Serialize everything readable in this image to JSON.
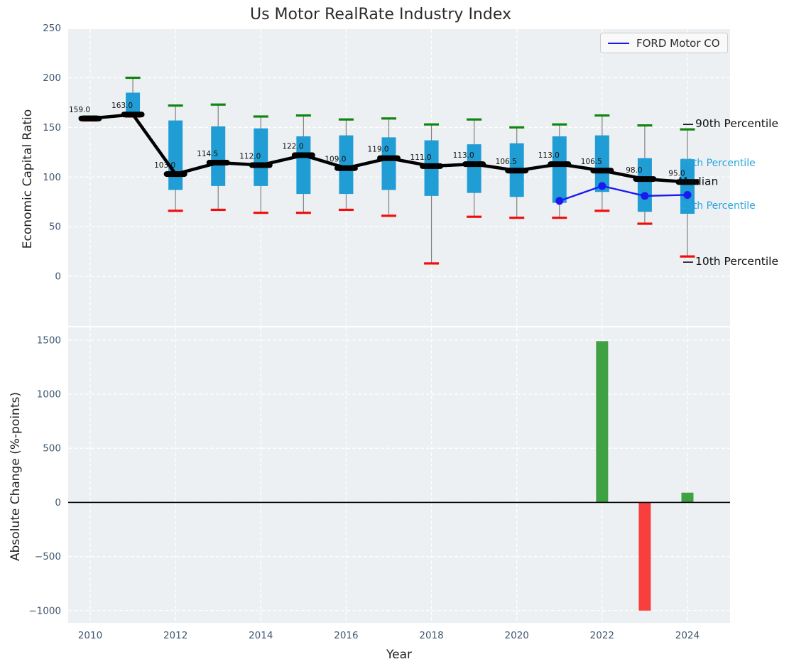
{
  "title": "Us Motor RealRate Industry Index",
  "legend": {
    "label": "FORD Motor CO"
  },
  "colors": {
    "plot_bg": "#edf0f2",
    "grid": "#ffffff",
    "box_fill": "#1f9dd4",
    "whisker": "#808080",
    "p90_cap": "#118511",
    "p10_cap": "#f20d0d",
    "median": "#000000",
    "median_label": "#111111",
    "ford_line": "#1a1af0",
    "percentile_label_blue": "#2aa5dc",
    "percentile_label_dark": "#111111",
    "bar_positive": "#3fa044",
    "bar_negative": "#f93e3e",
    "tick_label": "#3f5870",
    "zero_line": "#000000"
  },
  "chart_data": [
    {
      "type": "boxplot-line",
      "title": "Us Motor RealRate Industry Index",
      "ylabel": "Economic Capital Ratio",
      "ylim": [
        -50,
        249
      ],
      "yticks": [
        0,
        50,
        100,
        150,
        200,
        250
      ],
      "grid_years": [
        2010,
        2012,
        2014,
        2016,
        2018,
        2020,
        2022,
        2024
      ],
      "years": [
        2010,
        2011,
        2012,
        2013,
        2014,
        2015,
        2016,
        2017,
        2018,
        2019,
        2020,
        2021,
        2022,
        2023,
        2024
      ],
      "series": [
        {
          "name": "90th Percentile",
          "values": [
            161,
            200,
            172,
            173,
            161,
            162,
            158,
            159,
            153,
            158,
            150,
            153,
            162,
            152,
            148
          ]
        },
        {
          "name": "75th Percentile",
          "values": [
            160,
            185,
            157,
            151,
            149,
            141,
            142,
            140,
            137,
            133,
            134,
            141,
            142,
            119,
            118
          ]
        },
        {
          "name": "Median",
          "values": [
            159,
            163,
            103,
            114.5,
            112,
            122,
            109,
            119,
            111,
            113,
            106.5,
            113,
            106.5,
            98,
            95
          ]
        },
        {
          "name": "25th Percentile",
          "values": [
            158,
            163,
            87,
            91,
            91,
            83,
            83,
            87,
            81,
            84,
            80,
            74,
            85,
            65,
            63
          ]
        },
        {
          "name": "10th Percentile",
          "values": [
            157,
            161,
            66,
            67,
            64,
            64,
            67,
            61,
            13,
            60,
            59,
            59,
            66,
            53,
            20
          ]
        }
      ],
      "median_labels": [
        "159.0",
        "163.0",
        "103.0",
        "114.5",
        "112.0",
        "122.0",
        "109.0",
        "119.0",
        "111.0",
        "113.0",
        "106.5",
        "113.0",
        "106.5",
        "98.0",
        "95.0"
      ],
      "company_line": {
        "name": "FORD Motor CO",
        "years": [
          2021,
          2022,
          2023,
          2024
        ],
        "values": [
          76,
          91,
          81,
          82
        ]
      },
      "annotations": {
        "p90": "90th Percentile",
        "p75": "75th Percentile",
        "median": "Median",
        "p25": "25th Percentile",
        "p10": "10th Percentile"
      },
      "legend_entries": [
        "FORD Motor CO"
      ]
    },
    {
      "type": "bar",
      "ylabel": "Absolute Change (%-points)",
      "xlabel": "Year",
      "ylim": [
        -1113,
        1617
      ],
      "yticks": [
        -1000,
        -500,
        0,
        500,
        1000,
        1500
      ],
      "xticks": [
        2010,
        2012,
        2014,
        2016,
        2018,
        2020,
        2022,
        2024
      ],
      "categories": [
        2010,
        2011,
        2012,
        2013,
        2014,
        2015,
        2016,
        2017,
        2018,
        2019,
        2020,
        2021,
        2022,
        2023,
        2024
      ],
      "values": [
        0,
        0,
        0,
        0,
        0,
        0,
        0,
        0,
        0,
        0,
        0,
        0,
        1490,
        -1000,
        90
      ]
    }
  ]
}
